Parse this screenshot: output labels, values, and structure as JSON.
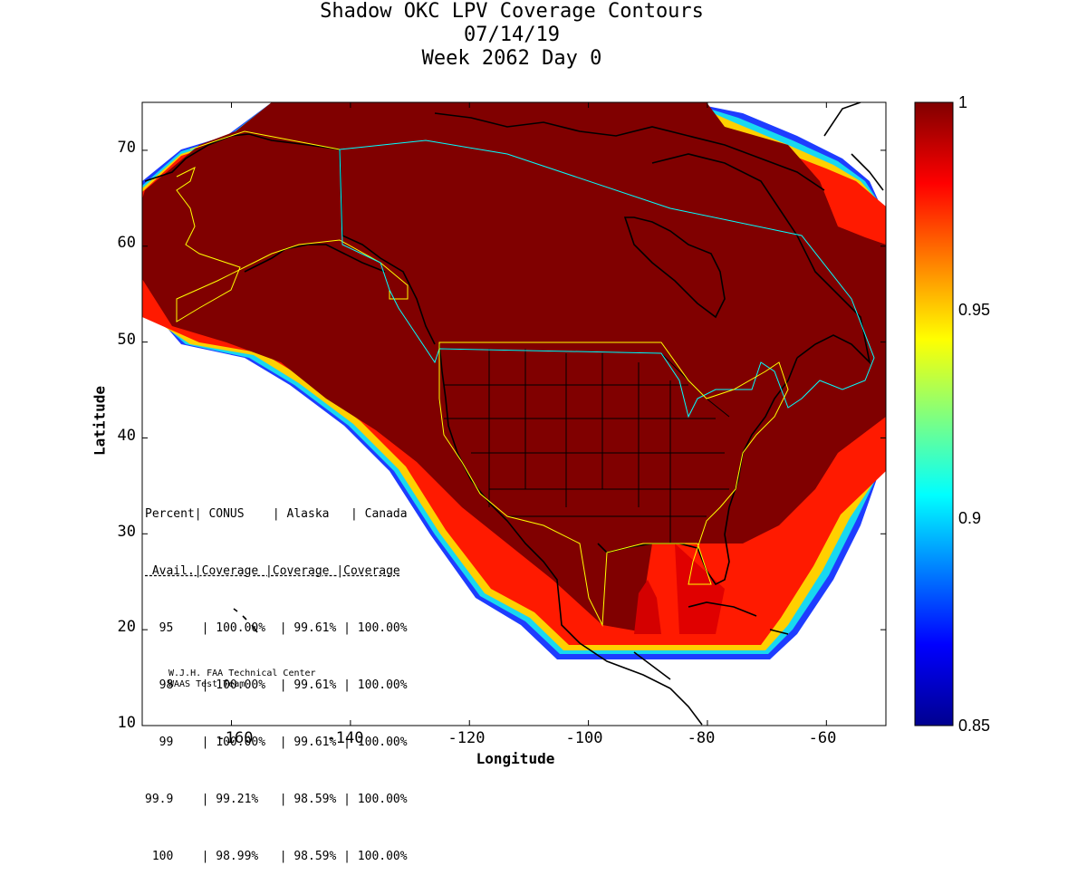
{
  "chart_data": {
    "type": "heatmap",
    "title": "Shadow OKC LPV Coverage Contours",
    "subtitle_date": "07/14/19",
    "subtitle_week": "Week 2062 Day 0",
    "xlabel": "Longitude",
    "ylabel": "Latitude",
    "xlim": [
      -175,
      -50
    ],
    "ylim": [
      10,
      75
    ],
    "x_ticks": [
      "-160",
      "-140",
      "-120",
      "-100",
      "-80",
      "-60"
    ],
    "x_tick_values": [
      -160,
      -140,
      -120,
      -100,
      -80,
      -60
    ],
    "y_ticks": [
      "10",
      "20",
      "30",
      "40",
      "50",
      "60",
      "70"
    ],
    "y_tick_values": [
      10,
      20,
      30,
      40,
      50,
      60,
      70
    ],
    "colorbar": {
      "range": [
        0.85,
        1
      ],
      "ticks": [
        "0.85",
        "0.9",
        "0.95",
        "1"
      ],
      "tick_values": [
        0.85,
        0.9,
        0.95,
        1.0
      ],
      "colormap": [
        "#00008f",
        "#0000ff",
        "#00ffff",
        "#ffff00",
        "#ff0000",
        "#800000"
      ]
    },
    "coverage_region_value": 1.0,
    "coverage_table": {
      "header1": "Percent| CONUS    | Alaska   | Canada",
      "header2": " Avail.|Coverage |Coverage |Coverage",
      "rows": [
        "  95    | 100.00%  | 99.61% | 100.00%",
        "  98    | 100.00%  | 99.61% | 100.00%",
        "  99    | 100.00%  | 99.61% | 100.00%",
        "99.9    | 99.21%   | 98.59% | 100.00%",
        " 100    | 98.99%   | 98.59% | 100.00%"
      ],
      "data": [
        {
          "percent": "95",
          "conus": "100.00%",
          "alaska": "99.61%",
          "canada": "100.00%"
        },
        {
          "percent": "98",
          "conus": "100.00%",
          "alaska": "99.61%",
          "canada": "100.00%"
        },
        {
          "percent": "99",
          "conus": "100.00%",
          "alaska": "99.61%",
          "canada": "100.00%"
        },
        {
          "percent": "99.9",
          "conus": "99.21%",
          "alaska": "98.59%",
          "canada": "100.00%"
        },
        {
          "percent": "100",
          "conus": "98.99%",
          "alaska": "98.59%",
          "canada": "100.00%"
        }
      ]
    },
    "credits": [
      "W.J.H. FAA Technical Center",
      "WAAS Test Team"
    ]
  },
  "colors": {
    "coverage_dark": "#800000",
    "boundary_yellow": "#ffff00",
    "boundary_cyan": "#00ffff",
    "coastline": "#000000"
  }
}
